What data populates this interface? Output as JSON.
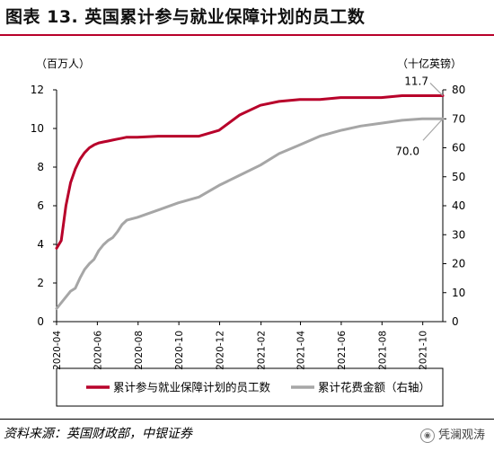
{
  "header": {
    "title": "图表 13. 英国累计参与就业保障计划的员工数"
  },
  "footer": {
    "source": "资料来源：英国财政部，中银证券",
    "brand": "凭澜观涛",
    "brand_icon": "wechat-icon"
  },
  "chart_data": {
    "type": "line",
    "left_unit": "（百万人）",
    "right_unit": "（十亿英镑）",
    "y_left": {
      "min": 0,
      "max": 12,
      "ticks": [
        0,
        2,
        4,
        6,
        8,
        10,
        12
      ]
    },
    "y_right": {
      "min": 0,
      "max": 80,
      "ticks": [
        0,
        10,
        20,
        30,
        40,
        50,
        60,
        70,
        80
      ]
    },
    "x_ticks": [
      "2020-04",
      "2020-06",
      "2020-08",
      "2020-10",
      "2020-12",
      "2021-02",
      "2021-04",
      "2021-06",
      "2021-08",
      "2021-10"
    ],
    "x_tick_dates": [
      "2020-04-01",
      "2020-06-01",
      "2020-08-01",
      "2020-10-01",
      "2020-12-01",
      "2021-02-01",
      "2021-04-01",
      "2021-06-01",
      "2021-08-01",
      "2021-10-01"
    ],
    "x_range": [
      "2020-04-01",
      "2021-10-31"
    ],
    "grid": false,
    "legend_position": "bottom",
    "series": [
      {
        "name": "累计参与就业保障计划的员工数",
        "axis": "left",
        "color": "#b8002a",
        "points": [
          [
            "2020-04-01",
            3.8
          ],
          [
            "2020-04-08",
            4.2
          ],
          [
            "2020-04-15",
            6.0
          ],
          [
            "2020-04-22",
            7.2
          ],
          [
            "2020-04-29",
            7.9
          ],
          [
            "2020-05-06",
            8.4
          ],
          [
            "2020-05-13",
            8.75
          ],
          [
            "2020-05-20",
            9.0
          ],
          [
            "2020-05-27",
            9.15
          ],
          [
            "2020-06-03",
            9.25
          ],
          [
            "2020-06-10",
            9.3
          ],
          [
            "2020-06-17",
            9.35
          ],
          [
            "2020-06-24",
            9.4
          ],
          [
            "2020-07-01",
            9.45
          ],
          [
            "2020-07-08",
            9.5
          ],
          [
            "2020-07-15",
            9.55
          ],
          [
            "2020-07-31",
            9.55
          ],
          [
            "2020-08-31",
            9.6
          ],
          [
            "2020-09-30",
            9.6
          ],
          [
            "2020-10-31",
            9.6
          ],
          [
            "2020-11-30",
            9.9
          ],
          [
            "2020-12-31",
            10.7
          ],
          [
            "2021-01-31",
            11.2
          ],
          [
            "2021-02-28",
            11.4
          ],
          [
            "2021-03-31",
            11.5
          ],
          [
            "2021-04-30",
            11.5
          ],
          [
            "2021-05-31",
            11.6
          ],
          [
            "2021-06-30",
            11.6
          ],
          [
            "2021-07-31",
            11.6
          ],
          [
            "2021-08-31",
            11.7
          ],
          [
            "2021-09-30",
            11.7
          ],
          [
            "2021-10-31",
            11.7
          ]
        ],
        "end_label": "11.7"
      },
      {
        "name": "累计花费金额（右轴）",
        "axis": "right",
        "color": "#a6a6a6",
        "points": [
          [
            "2020-04-01",
            4.5
          ],
          [
            "2020-04-08",
            6.5
          ],
          [
            "2020-04-15",
            8.5
          ],
          [
            "2020-04-22",
            10.5
          ],
          [
            "2020-04-29",
            11.5
          ],
          [
            "2020-05-06",
            15.0
          ],
          [
            "2020-05-13",
            18.0
          ],
          [
            "2020-05-20",
            20.0
          ],
          [
            "2020-05-27",
            21.5
          ],
          [
            "2020-06-03",
            24.5
          ],
          [
            "2020-06-10",
            26.5
          ],
          [
            "2020-06-17",
            28.0
          ],
          [
            "2020-06-24",
            29.0
          ],
          [
            "2020-07-01",
            31.0
          ],
          [
            "2020-07-08",
            33.5
          ],
          [
            "2020-07-15",
            35.0
          ],
          [
            "2020-07-31",
            36.0
          ],
          [
            "2020-08-31",
            38.5
          ],
          [
            "2020-09-30",
            41.0
          ],
          [
            "2020-10-31",
            43.0
          ],
          [
            "2020-11-30",
            47.0
          ],
          [
            "2020-12-31",
            50.5
          ],
          [
            "2021-01-31",
            54.0
          ],
          [
            "2021-02-28",
            58.0
          ],
          [
            "2021-03-31",
            61.0
          ],
          [
            "2021-04-30",
            64.0
          ],
          [
            "2021-05-31",
            66.0
          ],
          [
            "2021-06-30",
            67.5
          ],
          [
            "2021-07-31",
            68.5
          ],
          [
            "2021-08-31",
            69.5
          ],
          [
            "2021-09-30",
            70.0
          ],
          [
            "2021-10-31",
            70.0
          ]
        ],
        "end_label": "70.0"
      }
    ]
  }
}
